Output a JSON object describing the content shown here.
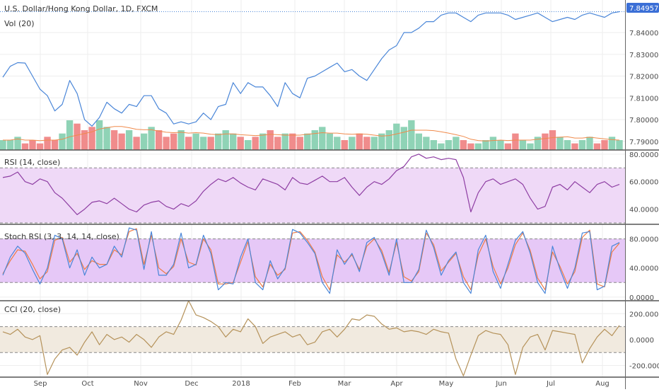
{
  "header": {
    "symbol_title": "U.S. Dollar/Hong Kong Dollar, 1D, FXCM",
    "volume_label": "Vol (20)",
    "last_price": "7.84957"
  },
  "colors": {
    "price_line": "#4a86d8",
    "volume_up": "#8fd3b6",
    "volume_down": "#f08c8c",
    "volume_ma": "#f08a4b",
    "rsi_line": "#8e3ea3",
    "rsi_band": "#efd9f7",
    "stoch_k": "#4a86d8",
    "stoch_d": "#ef7b45",
    "stoch_band": "#e6c8f7",
    "cci_line": "#b5925a",
    "cci_band": "#f1eadf",
    "price_badge": "#3b6fd6"
  },
  "x_axis": {
    "labels": [
      "Sep",
      "Oct",
      "Nov",
      "Dec",
      "2018",
      "Feb",
      "Mar",
      "Apr",
      "May",
      "Jun",
      "Jul",
      "Aug"
    ]
  },
  "chart_data": [
    {
      "type": "line",
      "name": "price",
      "ylim": [
        7.788,
        7.853
      ],
      "y_ticks": [
        "7.84000",
        "7.83000",
        "7.82000",
        "7.81000",
        "7.80000",
        "7.79000"
      ],
      "values": [
        7.8195,
        7.8245,
        7.8262,
        7.826,
        7.82,
        7.814,
        7.811,
        7.804,
        7.807,
        7.818,
        7.812,
        7.8,
        7.797,
        7.801,
        7.808,
        7.805,
        7.803,
        7.807,
        7.806,
        7.811,
        7.811,
        7.805,
        7.803,
        7.798,
        7.799,
        7.798,
        7.799,
        7.803,
        7.8,
        7.806,
        7.807,
        7.817,
        7.812,
        7.817,
        7.815,
        7.815,
        7.811,
        7.806,
        7.817,
        7.812,
        7.81,
        7.819,
        7.82,
        7.822,
        7.824,
        7.826,
        7.822,
        7.823,
        7.82,
        7.818,
        7.823,
        7.828,
        7.832,
        7.834,
        7.84,
        7.84,
        7.842,
        7.845,
        7.845,
        7.848,
        7.849,
        7.849,
        7.847,
        7.845,
        7.848,
        7.849,
        7.849,
        7.849,
        7.848,
        7.846,
        7.847,
        7.848,
        7.849,
        7.847,
        7.845,
        7.846,
        7.847,
        7.846,
        7.848,
        7.849,
        7.848,
        7.847,
        7.849,
        7.8496
      ]
    },
    {
      "type": "bar",
      "name": "volume",
      "values": [
        3,
        3,
        4,
        2,
        3,
        2,
        4,
        3,
        5,
        9,
        8,
        6,
        7,
        9,
        7,
        6,
        5,
        6,
        4,
        5,
        7,
        6,
        4,
        5,
        6,
        4,
        5,
        4,
        4,
        5,
        6,
        5,
        4,
        3,
        4,
        5,
        6,
        4,
        5,
        5,
        4,
        5,
        6,
        7,
        5,
        4,
        3,
        4,
        5,
        4,
        4,
        5,
        6,
        8,
        7,
        9,
        5,
        4,
        3,
        2,
        3,
        4,
        3,
        2,
        2,
        3,
        4,
        3,
        2,
        5,
        3,
        2,
        4,
        5,
        6,
        4,
        3,
        2,
        3,
        4,
        2,
        3,
        4,
        3
      ]
    },
    {
      "type": "line",
      "name": "RSI (14, close)",
      "ylim": [
        29,
        83
      ],
      "bands": [
        70,
        30
      ],
      "y_ticks": [
        "80.0000",
        "60.0000",
        "40.0000"
      ],
      "values": [
        63,
        64,
        67,
        60,
        58,
        62,
        60,
        52,
        48,
        42,
        36,
        40,
        45,
        46,
        44,
        48,
        44,
        40,
        38,
        43,
        45,
        46,
        42,
        40,
        44,
        42,
        46,
        53,
        58,
        62,
        60,
        63,
        59,
        56,
        54,
        62,
        60,
        58,
        54,
        63,
        59,
        58,
        61,
        64,
        60,
        60,
        63,
        56,
        50,
        56,
        60,
        58,
        62,
        68,
        71,
        78,
        80,
        77,
        78,
        76,
        77,
        76,
        63,
        38,
        52,
        60,
        62,
        58,
        60,
        62,
        58,
        48,
        40,
        42,
        56,
        58,
        54,
        60,
        56,
        52,
        58,
        60,
        56,
        58
      ]
    },
    {
      "type": "line",
      "name": "Stoch RSI (3, 3, 14, 14, close)",
      "ylim": [
        -5,
        100
      ],
      "bands": [
        80,
        20
      ],
      "y_ticks": [
        "80.0000",
        "40.0000",
        "0.0000"
      ],
      "series": [
        {
          "name": "K",
          "values": [
            30,
            55,
            70,
            60,
            38,
            18,
            40,
            85,
            80,
            40,
            65,
            30,
            55,
            40,
            45,
            70,
            55,
            95,
            92,
            38,
            90,
            30,
            30,
            45,
            88,
            40,
            45,
            85,
            60,
            10,
            20,
            18,
            55,
            80,
            20,
            10,
            50,
            25,
            40,
            93,
            88,
            75,
            60,
            20,
            5,
            65,
            45,
            60,
            35,
            75,
            82,
            60,
            30,
            80,
            20,
            20,
            38,
            92,
            68,
            30,
            50,
            62,
            20,
            5,
            65,
            85,
            35,
            12,
            45,
            78,
            90,
            60,
            20,
            5,
            70,
            38,
            12,
            40,
            88,
            90,
            10,
            15,
            70,
            75
          ]
        },
        {
          "name": "D",
          "values": [
            32,
            50,
            65,
            63,
            45,
            25,
            35,
            78,
            82,
            48,
            60,
            38,
            50,
            45,
            45,
            65,
            58,
            90,
            94,
            45,
            85,
            40,
            32,
            42,
            80,
            48,
            44,
            80,
            65,
            18,
            18,
            20,
            48,
            76,
            28,
            14,
            45,
            30,
            38,
            88,
            90,
            78,
            62,
            28,
            10,
            58,
            48,
            58,
            38,
            70,
            80,
            64,
            34,
            75,
            28,
            22,
            35,
            88,
            72,
            36,
            48,
            60,
            28,
            10,
            58,
            80,
            42,
            18,
            40,
            72,
            88,
            64,
            26,
            10,
            62,
            42,
            18,
            35,
            82,
            92,
            18,
            14,
            62,
            74
          ]
        }
      ]
    },
    {
      "type": "line",
      "name": "CCI (20, close)",
      "ylim": [
        -290,
        300
      ],
      "bands": [
        100,
        -100
      ],
      "y_ticks": [
        "200.0000",
        "0.0000",
        "-200.0000"
      ],
      "values": [
        60,
        40,
        80,
        20,
        0,
        30,
        -270,
        -150,
        -80,
        -60,
        -120,
        -20,
        60,
        -40,
        40,
        0,
        20,
        -20,
        40,
        0,
        -60,
        20,
        60,
        40,
        150,
        300,
        190,
        170,
        140,
        100,
        20,
        80,
        60,
        160,
        100,
        -30,
        20,
        40,
        60,
        20,
        40,
        -40,
        -20,
        60,
        80,
        20,
        80,
        160,
        150,
        190,
        180,
        120,
        80,
        90,
        60,
        70,
        60,
        40,
        80,
        60,
        50,
        -150,
        -280,
        -120,
        30,
        70,
        50,
        40,
        -40,
        -270,
        -60,
        20,
        40,
        -80,
        70,
        60,
        50,
        40,
        -180,
        -70,
        20,
        80,
        30,
        110
      ]
    }
  ]
}
